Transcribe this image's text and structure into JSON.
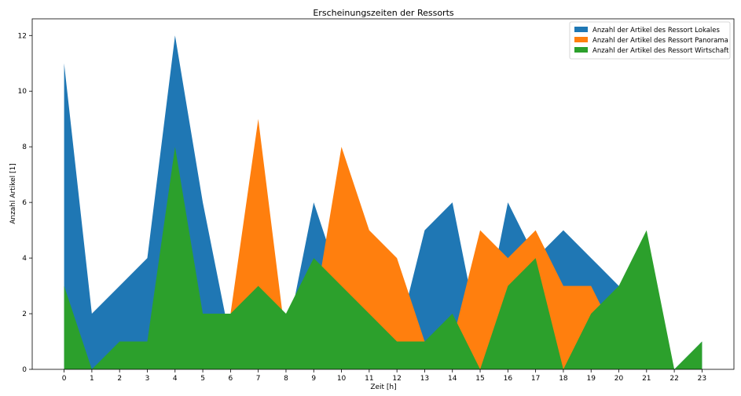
{
  "chart_data": {
    "type": "area",
    "title": "Erscheinungszeiten der Ressorts",
    "xlabel": "Zeit [h]",
    "ylabel": "Anzahl Artikel [1]",
    "x": [
      0,
      1,
      2,
      3,
      4,
      5,
      6,
      7,
      8,
      9,
      10,
      11,
      12,
      13,
      14,
      15,
      16,
      17,
      18,
      19,
      20,
      21,
      22,
      23
    ],
    "xlim": [
      -1.15,
      24.15
    ],
    "ylim": [
      0,
      12.6
    ],
    "yticks": [
      0,
      2,
      4,
      6,
      8,
      10,
      12
    ],
    "grid": false,
    "legend_position": "top-right",
    "series": [
      {
        "name": "Anzahl der Artikel des Ressort Lokales",
        "color": "#1f77b4",
        "values": [
          11,
          2,
          3,
          4,
          12,
          6,
          1,
          3,
          1,
          6,
          3,
          2,
          1,
          5,
          6,
          1,
          6,
          4,
          5,
          4,
          3,
          3,
          0,
          1
        ]
      },
      {
        "name": "Anzahl der Artikel des Ressort Panorama",
        "color": "#ff7f0e",
        "values": [
          0,
          0,
          0,
          0,
          1,
          0,
          2,
          9,
          1,
          2,
          8,
          5,
          4,
          1,
          1,
          5,
          4,
          5,
          3,
          3,
          1,
          0,
          0,
          0
        ]
      },
      {
        "name": "Anzahl der Artikel des Ressort Wirtschaft",
        "color": "#2ca02c",
        "values": [
          3,
          0,
          1,
          1,
          8,
          2,
          2,
          3,
          2,
          4,
          3,
          2,
          1,
          1,
          2,
          0,
          3,
          4,
          0,
          2,
          3,
          5,
          0,
          1
        ]
      }
    ]
  }
}
